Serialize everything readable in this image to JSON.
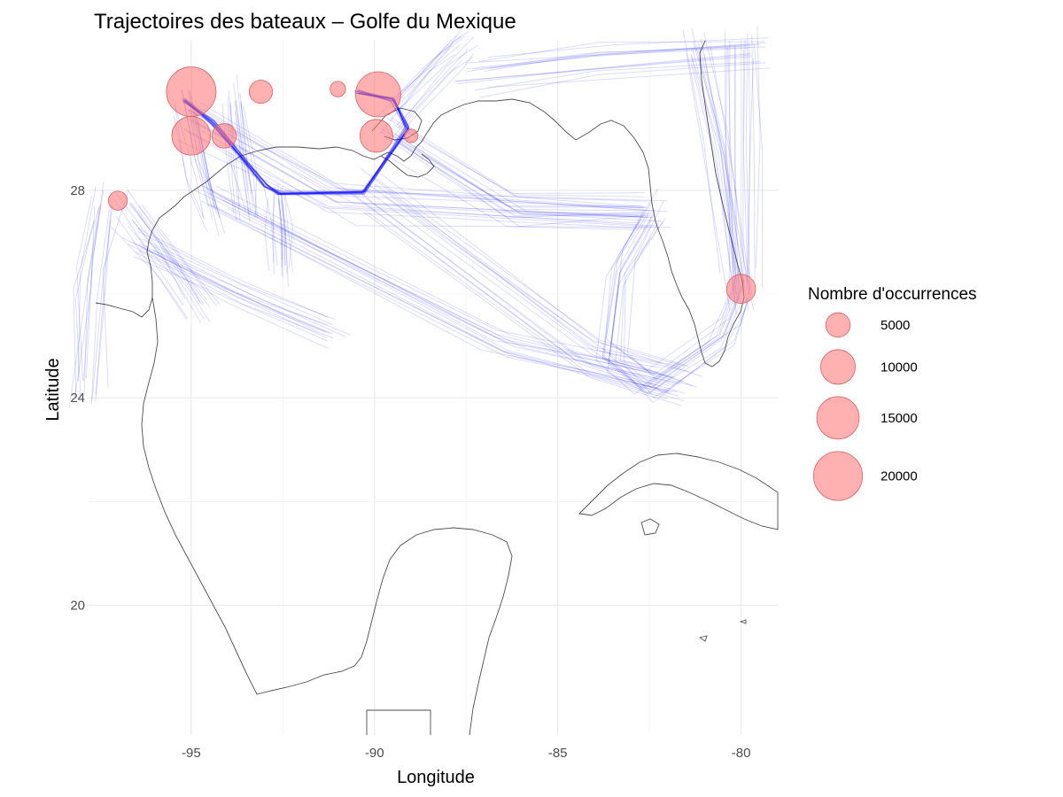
{
  "chart_data": {
    "type": "map",
    "title": "Trajectoires des bateaux – Golfe du Mexique",
    "xlabel": "Longitude",
    "ylabel": "Latitude",
    "xlim": [
      -97.8,
      -79.0
    ],
    "ylim": [
      17.5,
      30.9
    ],
    "x_ticks": [
      -95,
      -90,
      -85,
      -80
    ],
    "y_ticks": [
      20,
      24,
      28
    ],
    "grid": true,
    "colors": {
      "coastline": "#4d4d4d",
      "track": "#0000ff",
      "bubble_fill": "#ff6f6f",
      "bubble_stroke": "#e06060",
      "grid": "#ebebeb"
    },
    "legend": {
      "title": "Nombre d'occurrences",
      "position": "right",
      "sizes": [
        5000,
        10000,
        15000,
        20000
      ],
      "labels": [
        "5000",
        "10000",
        "15000",
        "20000"
      ]
    },
    "ports": [
      {
        "lon": -95.0,
        "lat": 29.9,
        "count": 20500
      },
      {
        "lon": -95.0,
        "lat": 29.05,
        "count": 12500
      },
      {
        "lon": -94.1,
        "lat": 29.05,
        "count": 5000
      },
      {
        "lon": -93.1,
        "lat": 29.9,
        "count": 4500
      },
      {
        "lon": -91.0,
        "lat": 29.95,
        "count": 2000
      },
      {
        "lon": -89.9,
        "lat": 29.85,
        "count": 17000
      },
      {
        "lon": -89.95,
        "lat": 29.05,
        "count": 9000
      },
      {
        "lon": -89.0,
        "lat": 29.05,
        "count": 1500
      },
      {
        "lon": -97.0,
        "lat": 27.8,
        "count": 3000
      },
      {
        "lon": -80.0,
        "lat": 26.1,
        "count": 7000
      }
    ],
    "main_route": [
      [
        -95.2,
        29.75
      ],
      [
        -94.4,
        29.3
      ],
      [
        -93.0,
        28.1
      ],
      [
        -92.6,
        27.95
      ],
      [
        -90.3,
        27.95
      ],
      [
        -89.1,
        29.2
      ],
      [
        -89.5,
        29.75
      ],
      [
        -90.5,
        29.9
      ]
    ],
    "secondary_routes": [
      [
        [
          -95.0,
          29.7
        ],
        [
          -94.6,
          28.3
        ],
        [
          -94.3,
          27.5
        ]
      ],
      [
        [
          -93.8,
          29.8
        ],
        [
          -93.6,
          28.6
        ],
        [
          -93.4,
          27.6
        ]
      ],
      [
        [
          -92.6,
          28.0
        ],
        [
          -92.5,
          27.3
        ],
        [
          -92.5,
          26.5
        ]
      ],
      [
        [
          -89.4,
          29.2
        ],
        [
          -86.0,
          27.7
        ],
        [
          -82.5,
          27.7
        ]
      ],
      [
        [
          -95.0,
          29.4
        ],
        [
          -91.0,
          27.8
        ],
        [
          -82.4,
          27.5
        ]
      ],
      [
        [
          -82.4,
          27.6
        ],
        [
          -83.3,
          26.5
        ],
        [
          -83.6,
          24.8
        ],
        [
          -82.5,
          24.2
        ],
        [
          -80.5,
          25.2
        ],
        [
          -80.0,
          26.1
        ]
      ],
      [
        [
          -90.2,
          28.0
        ],
        [
          -84.0,
          24.8
        ],
        [
          -81.5,
          24.3
        ]
      ],
      [
        [
          -94.5,
          27.9
        ],
        [
          -86.5,
          25.0
        ],
        [
          -82.0,
          24.3
        ]
      ],
      [
        [
          -96.8,
          27.6
        ],
        [
          -95.5,
          26.4
        ],
        [
          -94.8,
          25.7
        ]
      ],
      [
        [
          -97.3,
          27.8
        ],
        [
          -97.6,
          26.3
        ],
        [
          -97.8,
          24.1
        ]
      ],
      [
        [
          -80.0,
          26.2
        ],
        [
          -80.0,
          28.8
        ],
        [
          -80.0,
          30.9
        ]
      ],
      [
        [
          -80.2,
          26.0
        ],
        [
          -80.7,
          28.8
        ],
        [
          -81.4,
          30.8
        ]
      ],
      [
        [
          -89.5,
          29.4
        ],
        [
          -88.2,
          30.4
        ],
        [
          -87.6,
          30.8
        ]
      ],
      [
        [
          -87.3,
          30.2
        ],
        [
          -84.0,
          30.5
        ],
        [
          -79.5,
          30.7
        ]
      ],
      [
        [
          -96.3,
          27.0
        ],
        [
          -93.5,
          26.0
        ],
        [
          -91.0,
          25.3
        ]
      ]
    ]
  }
}
